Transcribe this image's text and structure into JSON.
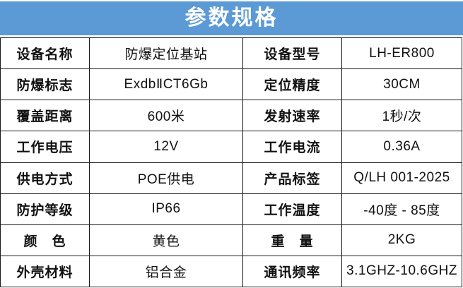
{
  "header": {
    "title": "参数规格"
  },
  "colors": {
    "accent": "#5B9AD5",
    "border": "#1a1a1a",
    "title_text": "#ffffff"
  },
  "table": {
    "rows": [
      [
        "设备名称",
        "防爆定位基站",
        "设备型号",
        "LH-ER800"
      ],
      [
        "防爆标志",
        "ExdbⅡCT6Gb",
        "定位精度",
        "30CM"
      ],
      [
        "覆盖距离",
        "600米",
        "发射速率",
        "1秒/次"
      ],
      [
        "工作电压",
        "12V",
        "工作电流",
        "0.36A"
      ],
      [
        "供电方式",
        "POE供电",
        "产品标签",
        "Q/LH 001-2025"
      ],
      [
        "防护等级",
        "IP66",
        "工作温度",
        "-40度 - 85度"
      ],
      [
        "颜　色",
        "黄色",
        "重　量",
        "2KG"
      ],
      [
        "外壳材料",
        "铝合金",
        "通讯频率",
        "3.1GHZ-10.6GHZ"
      ]
    ]
  }
}
